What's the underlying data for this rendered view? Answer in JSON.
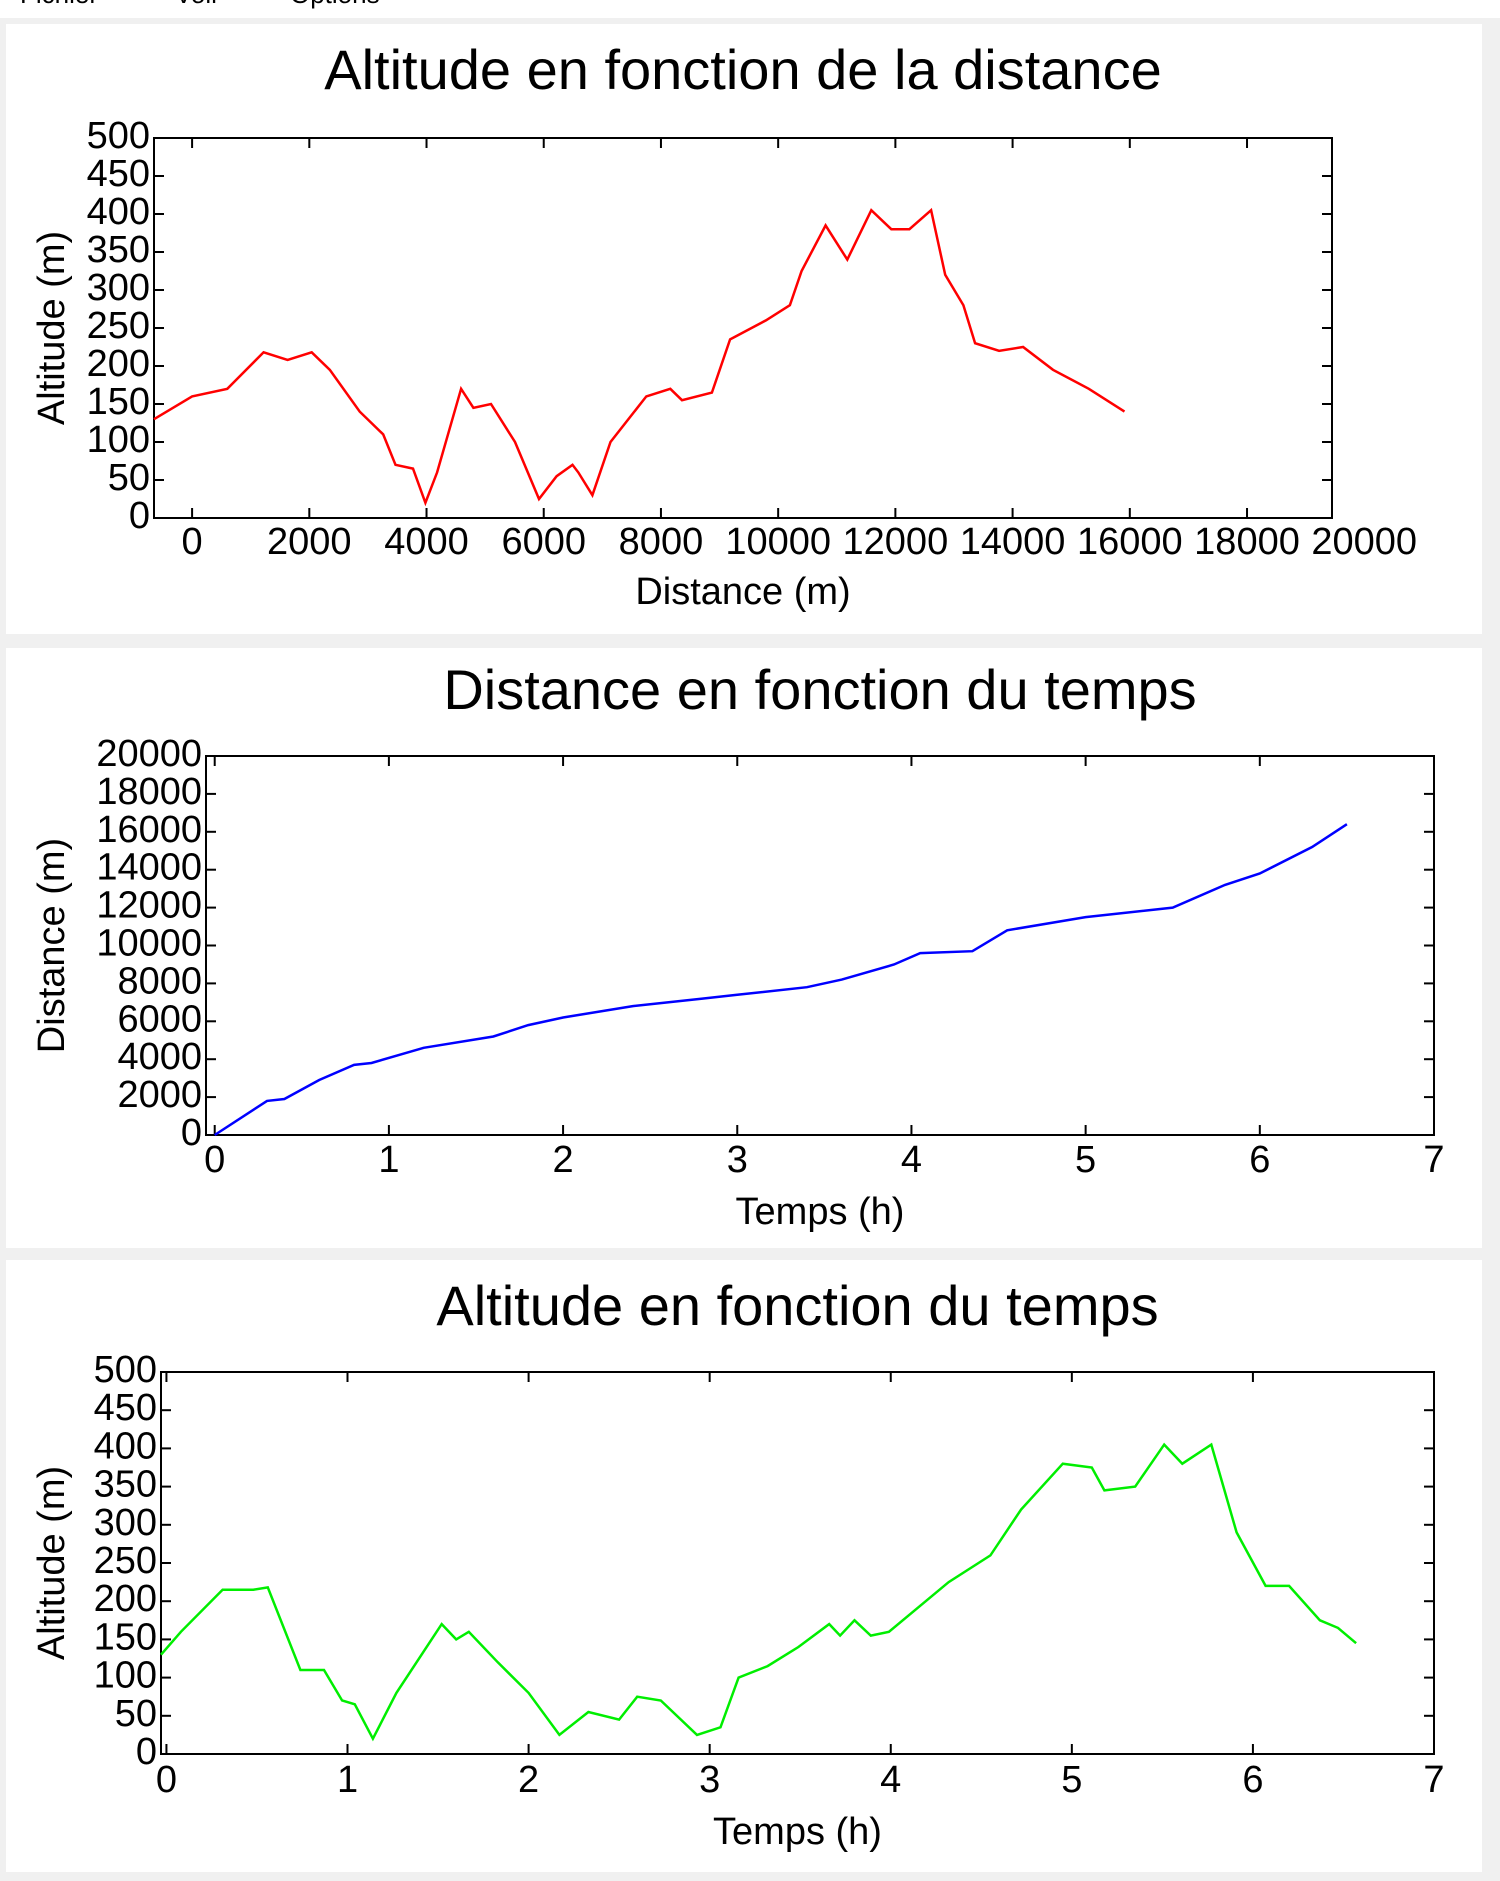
{
  "menu": [
    "Fichier",
    "Voir",
    "Options"
  ],
  "chart_data": [
    {
      "type": "line",
      "title": "Altitude en fonction de la distance",
      "x_label": "Distance (m)",
      "y_label": "Altitude (m)",
      "xlim": [
        -650,
        19450
      ],
      "xticks": [
        0,
        2000,
        4000,
        6000,
        8000,
        10000,
        12000,
        14000,
        16000,
        18000,
        20000
      ],
      "ylim": [
        0,
        500
      ],
      "yticks": [
        0,
        50,
        100,
        150,
        200,
        250,
        300,
        350,
        400,
        450,
        500
      ],
      "x": [
        -650,
        0,
        600,
        1220,
        1630,
        2040,
        2350,
        2860,
        3260,
        3470,
        3770,
        3980,
        4180,
        4590,
        4800,
        5100,
        5510,
        5920,
        6220,
        6490,
        6590,
        6830,
        7140,
        7750,
        8160,
        8360,
        8870,
        9180,
        9790,
        10200,
        10400,
        10810,
        11180,
        11590,
        11930,
        12240,
        12610,
        12850,
        13160,
        13360,
        13770,
        14180,
        14690,
        15300,
        15910
      ],
      "series": [
        {
          "color": "#ff0000",
          "values": [
            130,
            160,
            170,
            218,
            208,
            218,
            195,
            140,
            110,
            70,
            65,
            20,
            60,
            170,
            145,
            150,
            100,
            25,
            55,
            70,
            60,
            30,
            100,
            160,
            170,
            155,
            165,
            235,
            260,
            280,
            325,
            385,
            340,
            405,
            380,
            380,
            405,
            320,
            280,
            230,
            220,
            225,
            195,
            170,
            140
          ]
        }
      ]
    },
    {
      "type": "line",
      "title": "Distance en fonction du temps",
      "x_label": "Temps (h)",
      "y_label": "Distance (m)",
      "xlim": [
        -0.05,
        7
      ],
      "xticks": [
        0,
        1,
        2,
        3,
        4,
        5,
        6,
        7
      ],
      "ylim": [
        0,
        20000
      ],
      "yticks": [
        0,
        2000,
        4000,
        6000,
        8000,
        10000,
        12000,
        14000,
        16000,
        18000,
        20000
      ],
      "x": [
        0,
        0.3,
        0.4,
        0.6,
        0.8,
        0.9,
        1.2,
        1.6,
        1.8,
        2.0,
        2.4,
        2.8,
        3.0,
        3.4,
        3.6,
        3.9,
        4.05,
        4.35,
        4.55,
        5.0,
        5.5,
        5.8,
        6.0,
        6.3,
        6.5
      ],
      "series": [
        {
          "color": "#0000ff",
          "values": [
            0,
            1800,
            1900,
            2900,
            3700,
            3800,
            4600,
            5200,
            5800,
            6200,
            6800,
            7200,
            7400,
            7800,
            8200,
            9000,
            9600,
            9700,
            10800,
            11500,
            12000,
            13200,
            13800,
            15200,
            16400
          ]
        }
      ]
    },
    {
      "type": "line",
      "title": "Altitude en fonction du temps",
      "x_label": "Temps (h)",
      "y_label": "Altitude (m)",
      "xlim": [
        -0.03,
        7
      ],
      "xticks": [
        0,
        1,
        2,
        3,
        4,
        5,
        6,
        7
      ],
      "ylim": [
        0,
        500
      ],
      "yticks": [
        0,
        50,
        100,
        150,
        200,
        250,
        300,
        350,
        400,
        450,
        500
      ],
      "x": [
        -0.03,
        0.08,
        0.31,
        0.48,
        0.56,
        0.74,
        0.87,
        0.97,
        1.04,
        1.14,
        1.27,
        1.52,
        1.6,
        1.67,
        1.83,
        2.0,
        2.17,
        2.33,
        2.5,
        2.6,
        2.73,
        2.93,
        3.06,
        3.16,
        3.32,
        3.49,
        3.66,
        3.72,
        3.8,
        3.89,
        3.99,
        4.32,
        4.55,
        4.72,
        4.95,
        5.11,
        5.18,
        5.35,
        5.51,
        5.61,
        5.77,
        5.91,
        6.07,
        6.2,
        6.37,
        6.47,
        6.57
      ],
      "series": [
        {
          "color": "#00ee00",
          "values": [
            130,
            160,
            215,
            215,
            218,
            110,
            110,
            70,
            65,
            20,
            80,
            170,
            150,
            160,
            120,
            80,
            25,
            55,
            45,
            75,
            70,
            25,
            35,
            100,
            115,
            140,
            170,
            155,
            175,
            155,
            160,
            225,
            260,
            320,
            380,
            375,
            345,
            350,
            405,
            380,
            405,
            290,
            220,
            220,
            175,
            165,
            145
          ]
        }
      ]
    }
  ]
}
